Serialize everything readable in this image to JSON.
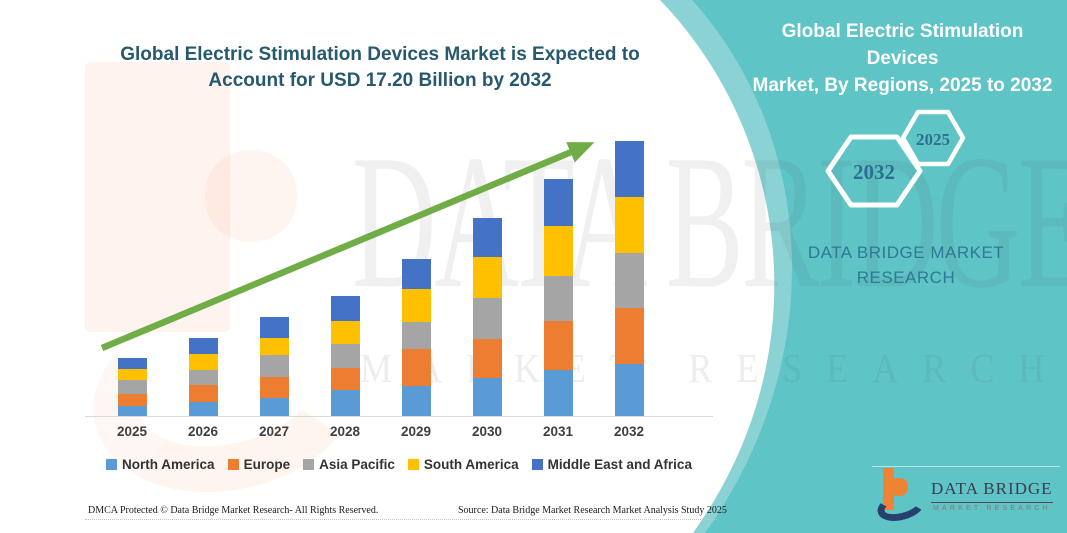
{
  "chart_panel": {
    "title_line1": "Global Electric Stimulation Devices Market is Expected to",
    "title_line2": "Account for USD 17.20 Billion by 2032"
  },
  "side_panel": {
    "title_line1": "Global Electric Stimulation Devices",
    "title_line2": "Market, By Regions, 2025 to 2032",
    "hexagons": {
      "back_year": "2032",
      "front_year": "2025"
    },
    "brand_line1": "DATA BRIDGE MARKET",
    "brand_line2": "RESEARCH"
  },
  "chart_data": {
    "type": "bar",
    "stacked": true,
    "title": "Global Electric Stimulation Devices Market is Expected to Account for USD 17.20 Billion by 2032",
    "unit": "USD Billion",
    "categories": [
      "2025",
      "2026",
      "2027",
      "2028",
      "2029",
      "2030",
      "2031",
      "2032"
    ],
    "series": [
      {
        "name": "North America",
        "color": "#5b9bd5",
        "values": [
          0.61,
          0.88,
          1.13,
          1.65,
          1.88,
          2.4,
          2.86,
          3.23
        ]
      },
      {
        "name": "Europe",
        "color": "#ed7d31",
        "values": [
          0.79,
          1.04,
          1.31,
          1.38,
          2.3,
          2.4,
          3.05,
          3.55
        ]
      },
      {
        "name": "Asia Pacific",
        "color": "#a5a5a5",
        "values": [
          0.83,
          0.94,
          1.36,
          1.5,
          1.69,
          2.55,
          2.86,
          3.44
        ]
      },
      {
        "name": "South America",
        "color": "#ffc000",
        "values": [
          0.69,
          1.04,
          1.08,
          1.42,
          2.06,
          2.56,
          3.13,
          3.48
        ]
      },
      {
        "name": "Middle East and Africa",
        "color": "#4472c4",
        "values": [
          0.71,
          0.98,
          1.31,
          1.54,
          1.88,
          2.44,
          2.88,
          3.5
        ]
      }
    ],
    "totals": [
      3.63,
      4.88,
      6.19,
      7.49,
      9.81,
      12.35,
      14.78,
      17.2
    ],
    "ylim": [
      0,
      18
    ],
    "grid": false,
    "legend_position": "bottom",
    "annotations": [
      "upward green trend arrow from 2025 to 2032"
    ]
  },
  "watermarks": {
    "big_text": "DATA BRIDGE",
    "sub_text": "MARKET RESEARCH"
  },
  "logo": {
    "wordmark": "DATA BRIDGE",
    "subtext": "MARKET RESEARCH"
  },
  "footer": {
    "dmca": "DMCA Protected © Data Bridge Market Research-  All Rights Reserved.",
    "source": "Source: Data Bridge Market Research  Market Analysis Study 2025"
  },
  "colors": {
    "panel_teal": "#5ec4c6",
    "panel_teal_light": "#8ad2d3",
    "title_text": "#27596e",
    "arrow_green": "#70ad47",
    "hexagon_stroke": "#ffffff",
    "hexagon_text": "#2d6f90",
    "brand_text_on_teal": "#2f7996",
    "logo_orange": "#ef8334",
    "logo_navy": "#27406e",
    "axis_line": "#d9d9d9",
    "label_text": "#3f3f3f"
  }
}
